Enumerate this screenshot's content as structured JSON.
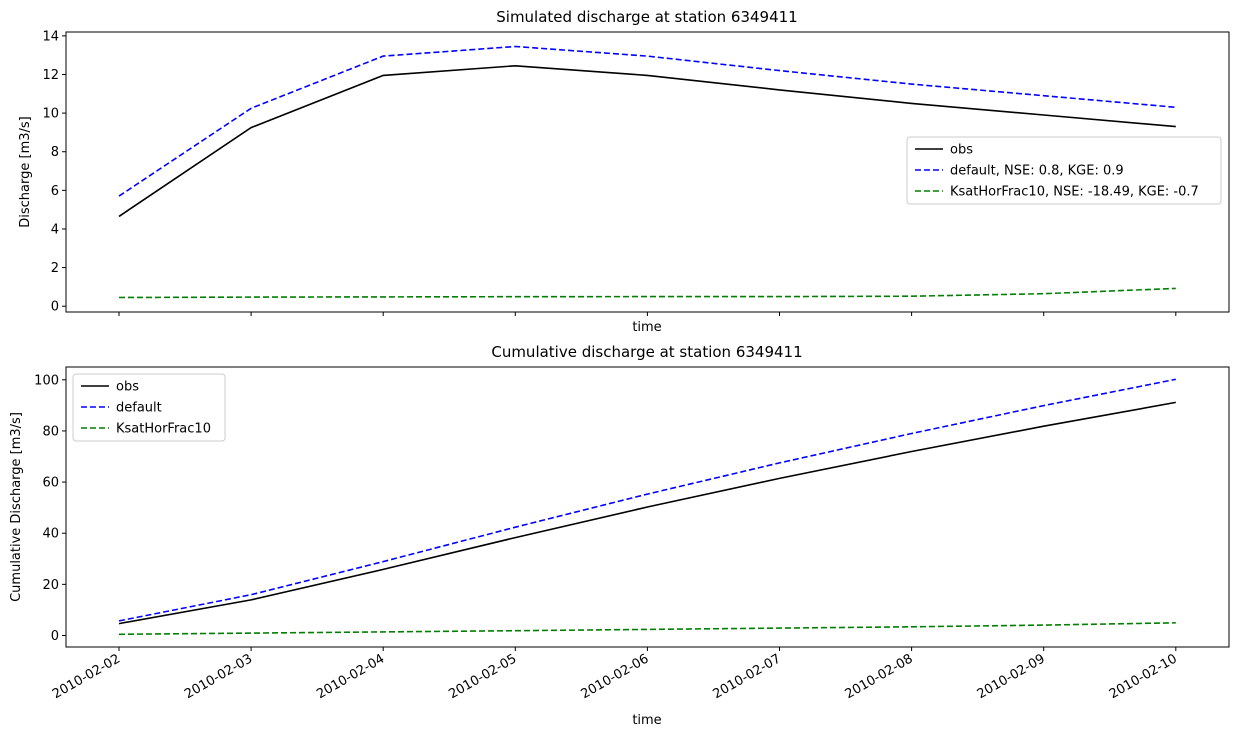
{
  "colors": {
    "obs": "#000000",
    "default": "#0000ff",
    "ksat": "#008000",
    "axis": "#000000",
    "legend_border": "#cccccc"
  },
  "chart_data": [
    {
      "type": "line",
      "title": "Simulated discharge at station 6349411",
      "xlabel": "time",
      "ylabel": "Discharge [m3/s]",
      "ylim": [
        -0.3,
        14.2
      ],
      "yticks": [
        0,
        2,
        4,
        6,
        8,
        10,
        12,
        14
      ],
      "show_xticklabels": false,
      "legend_position": "center-right",
      "categories": [
        "2010-02-02",
        "2010-02-03",
        "2010-02-04",
        "2010-02-05",
        "2010-02-06",
        "2010-02-07",
        "2010-02-08",
        "2010-02-09",
        "2010-02-10"
      ],
      "series": [
        {
          "name": "obs",
          "label": "obs",
          "style": "solid",
          "color_key": "obs",
          "values": [
            4.65,
            9.25,
            11.95,
            12.45,
            11.95,
            11.2,
            10.5,
            9.9,
            9.3
          ]
        },
        {
          "name": "default",
          "label": "default, NSE: 0.8, KGE: 0.9",
          "style": "dashed",
          "color_key": "default",
          "values": [
            5.7,
            10.25,
            12.95,
            13.45,
            12.95,
            12.2,
            11.5,
            10.9,
            10.3
          ]
        },
        {
          "name": "KsatHorFrac10",
          "label": "KsatHorFrac10, NSE: -18.49, KGE: -0.7",
          "style": "dashed",
          "color_key": "ksat",
          "values": [
            0.45,
            0.47,
            0.48,
            0.49,
            0.5,
            0.5,
            0.52,
            0.65,
            0.92
          ]
        }
      ]
    },
    {
      "type": "line",
      "title": "Cumulative discharge at station 6349411",
      "xlabel": "time",
      "ylabel": "Cumulative Discharge [m3/s]",
      "ylim": [
        -4.5,
        105
      ],
      "yticks": [
        0,
        20,
        40,
        60,
        80,
        100
      ],
      "show_xticklabels": true,
      "legend_position": "top-left",
      "categories": [
        "2010-02-02",
        "2010-02-03",
        "2010-02-04",
        "2010-02-05",
        "2010-02-06",
        "2010-02-07",
        "2010-02-08",
        "2010-02-09",
        "2010-02-10"
      ],
      "series": [
        {
          "name": "obs",
          "label": "obs",
          "style": "solid",
          "color_key": "obs",
          "values": [
            4.65,
            13.9,
            25.85,
            38.3,
            50.25,
            61.45,
            71.95,
            81.85,
            91.15
          ]
        },
        {
          "name": "default",
          "label": "default",
          "style": "dashed",
          "color_key": "default",
          "values": [
            5.7,
            15.95,
            28.9,
            42.35,
            55.3,
            67.5,
            79.0,
            89.9,
            100.2
          ]
        },
        {
          "name": "KsatHorFrac10",
          "label": "KsatHorFrac10",
          "style": "dashed",
          "color_key": "ksat",
          "values": [
            0.45,
            0.92,
            1.4,
            1.89,
            2.39,
            2.89,
            3.41,
            4.06,
            4.98
          ]
        }
      ]
    }
  ]
}
